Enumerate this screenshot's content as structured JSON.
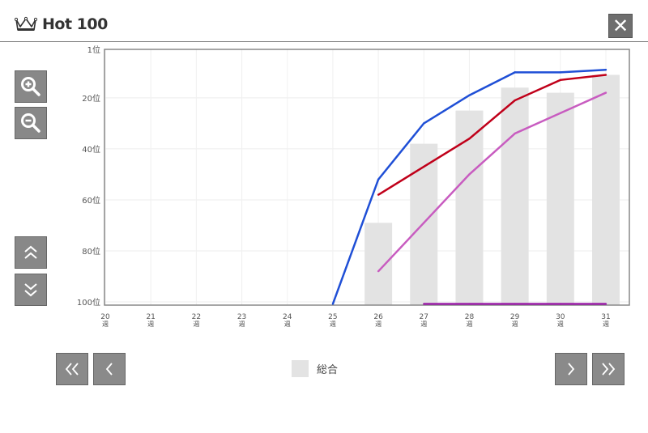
{
  "header": {
    "title": "Hot 100",
    "icon": "crown-icon",
    "close_label": "✕"
  },
  "controls": {
    "zoom_in": "zoom-in-icon",
    "zoom_out": "zoom-out-icon",
    "scroll_up": "double-chevron-up-icon",
    "scroll_down": "double-chevron-down-icon"
  },
  "pager": {
    "first": "«",
    "prev": "‹",
    "next": "›",
    "last": "»"
  },
  "legend": {
    "label": "総合",
    "color": "#e3e3e3"
  },
  "chart_data": {
    "type": "bar+line",
    "y_reversed": true,
    "ylim": [
      1,
      100
    ],
    "y_ticks": [
      "1位",
      "20位",
      "40位",
      "60位",
      "80位",
      "100位"
    ],
    "y_tick_values": [
      1,
      20,
      40,
      60,
      80,
      100
    ],
    "categories": [
      "20",
      "21",
      "22",
      "23",
      "24",
      "25",
      "26",
      "27",
      "28",
      "29",
      "30",
      "31"
    ],
    "x_unit": "週",
    "bars": {
      "name": "総合",
      "color": "#e3e3e3",
      "values": [
        null,
        null,
        null,
        null,
        null,
        null,
        69,
        38,
        25,
        16,
        18,
        11
      ]
    },
    "series": [
      {
        "color": "#1f4fd6",
        "values": [
          null,
          null,
          null,
          null,
          null,
          100,
          52,
          30,
          19,
          10,
          10,
          9
        ]
      },
      {
        "color": "#c0001a",
        "values": [
          null,
          null,
          null,
          null,
          null,
          null,
          58,
          47,
          36,
          21,
          13,
          11
        ]
      },
      {
        "color": "#c85cc0",
        "values": [
          null,
          null,
          null,
          null,
          null,
          null,
          88,
          69,
          50,
          34,
          26,
          18
        ]
      },
      {
        "color": "#9b1fa8",
        "values": [
          null,
          null,
          null,
          null,
          null,
          null,
          null,
          100,
          100,
          100,
          100,
          100
        ]
      }
    ],
    "grid": true
  }
}
